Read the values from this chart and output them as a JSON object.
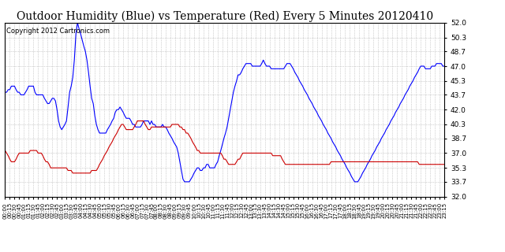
{
  "title": "Outdoor Humidity (Blue) vs Temperature (Red) Every 5 Minutes 20120410",
  "copyright": "Copyright 2012 Cartronics.com",
  "ylim": [
    32.0,
    52.0
  ],
  "yticks": [
    32.0,
    33.7,
    35.3,
    37.0,
    38.7,
    40.3,
    42.0,
    43.7,
    45.3,
    47.0,
    48.7,
    50.3,
    52.0
  ],
  "blue_color": "#0000ff",
  "red_color": "#cc0000",
  "bg_color": "#ffffff",
  "grid_color": "#aaaaaa",
  "title_fontsize": 10,
  "copyright_fontsize": 6,
  "humidity": [
    44.0,
    44.0,
    44.3,
    44.3,
    44.7,
    44.7,
    44.7,
    44.3,
    44.0,
    44.0,
    43.7,
    43.7,
    43.7,
    44.0,
    44.3,
    44.7,
    44.7,
    44.7,
    44.7,
    44.0,
    43.7,
    43.7,
    43.7,
    43.7,
    43.7,
    43.3,
    43.0,
    42.7,
    42.7,
    43.0,
    43.3,
    43.3,
    43.0,
    42.0,
    40.7,
    40.0,
    39.7,
    40.0,
    40.3,
    40.7,
    42.3,
    44.0,
    44.7,
    45.7,
    47.7,
    50.7,
    52.0,
    51.3,
    50.7,
    50.0,
    49.3,
    48.7,
    47.7,
    46.3,
    44.7,
    43.3,
    42.7,
    41.3,
    40.3,
    39.7,
    39.3,
    39.3,
    39.3,
    39.3,
    39.3,
    39.7,
    40.0,
    40.3,
    40.7,
    41.0,
    41.7,
    42.0,
    42.0,
    42.3,
    42.0,
    41.7,
    41.3,
    41.0,
    41.0,
    41.0,
    40.7,
    40.3,
    40.3,
    40.0,
    40.0,
    40.0,
    40.0,
    40.3,
    40.7,
    40.7,
    40.7,
    40.7,
    40.3,
    40.7,
    40.3,
    40.3,
    40.0,
    40.0,
    40.0,
    40.0,
    40.3,
    40.0,
    40.0,
    39.7,
    39.3,
    39.0,
    38.7,
    38.3,
    38.0,
    37.7,
    37.0,
    36.0,
    35.0,
    34.0,
    33.7,
    33.7,
    33.7,
    33.7,
    34.0,
    34.3,
    34.7,
    35.0,
    35.3,
    35.3,
    35.0,
    35.0,
    35.3,
    35.3,
    35.7,
    35.7,
    35.3,
    35.3,
    35.3,
    35.3,
    35.7,
    36.0,
    36.7,
    37.3,
    38.0,
    38.7,
    39.3,
    40.0,
    41.0,
    42.0,
    43.0,
    44.0,
    44.7,
    45.3,
    46.0,
    46.0,
    46.3,
    46.7,
    47.0,
    47.3,
    47.3,
    47.3,
    47.3,
    47.0,
    47.0,
    47.0,
    47.0,
    47.0,
    47.0,
    47.3,
    47.7,
    47.3,
    47.0,
    47.0,
    47.0,
    46.7,
    46.7,
    46.7,
    46.7,
    46.7,
    46.7,
    46.7,
    46.7,
    46.7,
    47.0,
    47.3,
    47.3,
    47.3,
    47.0,
    46.7,
    46.3,
    46.0,
    45.7,
    45.3,
    45.0,
    44.7,
    44.3,
    44.0,
    43.7,
    43.3,
    43.0,
    42.7,
    42.3,
    42.0,
    41.7,
    41.3,
    41.0,
    40.7,
    40.3,
    40.0,
    39.7,
    39.3,
    39.0,
    38.7,
    38.3,
    38.0,
    37.7,
    37.3,
    37.0,
    36.7,
    36.3,
    36.0,
    35.7,
    35.3,
    35.0,
    34.7,
    34.3,
    34.0,
    33.7,
    33.7,
    33.7,
    34.0,
    34.3,
    34.7,
    35.0,
    35.3,
    35.7,
    36.0,
    36.3,
    36.7,
    37.0,
    37.3,
    37.7,
    38.0,
    38.3,
    38.7,
    39.0,
    39.3,
    39.7,
    40.0,
    40.3,
    40.7,
    41.0,
    41.3,
    41.7,
    42.0,
    42.3,
    42.7,
    43.0,
    43.3,
    43.7,
    44.0,
    44.3,
    44.7,
    45.0,
    45.3,
    45.7,
    46.0,
    46.3,
    46.7,
    47.0,
    47.0,
    47.0,
    46.7,
    46.7,
    46.7,
    46.7,
    47.0,
    47.0,
    47.0,
    47.3,
    47.3,
    47.3,
    47.3,
    47.0,
    47.0
  ],
  "temperature": [
    37.3,
    37.0,
    36.7,
    36.3,
    36.0,
    36.0,
    36.0,
    36.3,
    36.7,
    37.0,
    37.0,
    37.0,
    37.0,
    37.0,
    37.0,
    37.0,
    37.3,
    37.3,
    37.3,
    37.3,
    37.3,
    37.0,
    37.0,
    37.0,
    36.7,
    36.3,
    36.0,
    36.0,
    35.7,
    35.3,
    35.3,
    35.3,
    35.3,
    35.3,
    35.3,
    35.3,
    35.3,
    35.3,
    35.3,
    35.3,
    35.0,
    35.0,
    35.0,
    34.7,
    34.7,
    34.7,
    34.7,
    34.7,
    34.7,
    34.7,
    34.7,
    34.7,
    34.7,
    34.7,
    34.7,
    35.0,
    35.0,
    35.0,
    35.0,
    35.3,
    35.7,
    36.0,
    36.3,
    36.7,
    37.0,
    37.3,
    37.7,
    38.0,
    38.3,
    38.7,
    39.0,
    39.3,
    39.7,
    40.0,
    40.3,
    40.3,
    40.0,
    39.7,
    39.7,
    39.7,
    39.7,
    39.7,
    40.0,
    40.3,
    40.7,
    40.7,
    40.7,
    40.7,
    40.7,
    40.3,
    40.0,
    39.7,
    39.7,
    40.0,
    40.0,
    40.0,
    40.0,
    40.0,
    40.0,
    40.0,
    40.0,
    40.0,
    40.0,
    40.0,
    40.0,
    40.0,
    40.3,
    40.3,
    40.3,
    40.3,
    40.3,
    40.0,
    40.0,
    39.7,
    39.7,
    39.3,
    39.3,
    39.0,
    38.7,
    38.3,
    38.0,
    37.7,
    37.3,
    37.3,
    37.0,
    37.0,
    37.0,
    37.0,
    37.0,
    37.0,
    37.0,
    37.0,
    37.0,
    37.0,
    37.0,
    37.0,
    37.0,
    37.0,
    36.7,
    36.3,
    36.3,
    36.0,
    35.7,
    35.7,
    35.7,
    35.7,
    35.7,
    36.0,
    36.3,
    36.3,
    36.7,
    37.0,
    37.0,
    37.0,
    37.0,
    37.0,
    37.0,
    37.0,
    37.0,
    37.0,
    37.0,
    37.0,
    37.0,
    37.0,
    37.0,
    37.0,
    37.0,
    37.0,
    37.0,
    37.0,
    36.7,
    36.7,
    36.7,
    36.7,
    36.7,
    36.7,
    36.3,
    36.0,
    35.7,
    35.7,
    35.7,
    35.7,
    35.7,
    35.7,
    35.7,
    35.7,
    35.7,
    35.7,
    35.7,
    35.7,
    35.7,
    35.7,
    35.7,
    35.7,
    35.7,
    35.7,
    35.7,
    35.7,
    35.7,
    35.7,
    35.7,
    35.7,
    35.7,
    35.7,
    35.7,
    35.7,
    35.7,
    36.0,
    36.0,
    36.0,
    36.0,
    36.0,
    36.0,
    36.0,
    36.0,
    36.0,
    36.0,
    36.0,
    36.0,
    36.0,
    36.0,
    36.0,
    36.0,
    36.0,
    36.0,
    36.0,
    36.0,
    36.0,
    36.0,
    36.0,
    36.0,
    36.0,
    36.0,
    36.0,
    36.0,
    36.0,
    36.0,
    36.0,
    36.0,
    36.0,
    36.0,
    36.0,
    36.0,
    36.0,
    36.0,
    36.0,
    36.0,
    36.0,
    36.0,
    36.0,
    36.0,
    36.0,
    36.0,
    36.0,
    36.0,
    36.0,
    36.0,
    36.0,
    36.0,
    36.0,
    36.0,
    36.0,
    36.0,
    35.7,
    35.7,
    35.7,
    35.7,
    35.7,
    35.7,
    35.7,
    35.7,
    35.7,
    35.7,
    35.7,
    35.7,
    35.7,
    35.7,
    35.7,
    35.7,
    35.7
  ],
  "xtick_every": 3
}
